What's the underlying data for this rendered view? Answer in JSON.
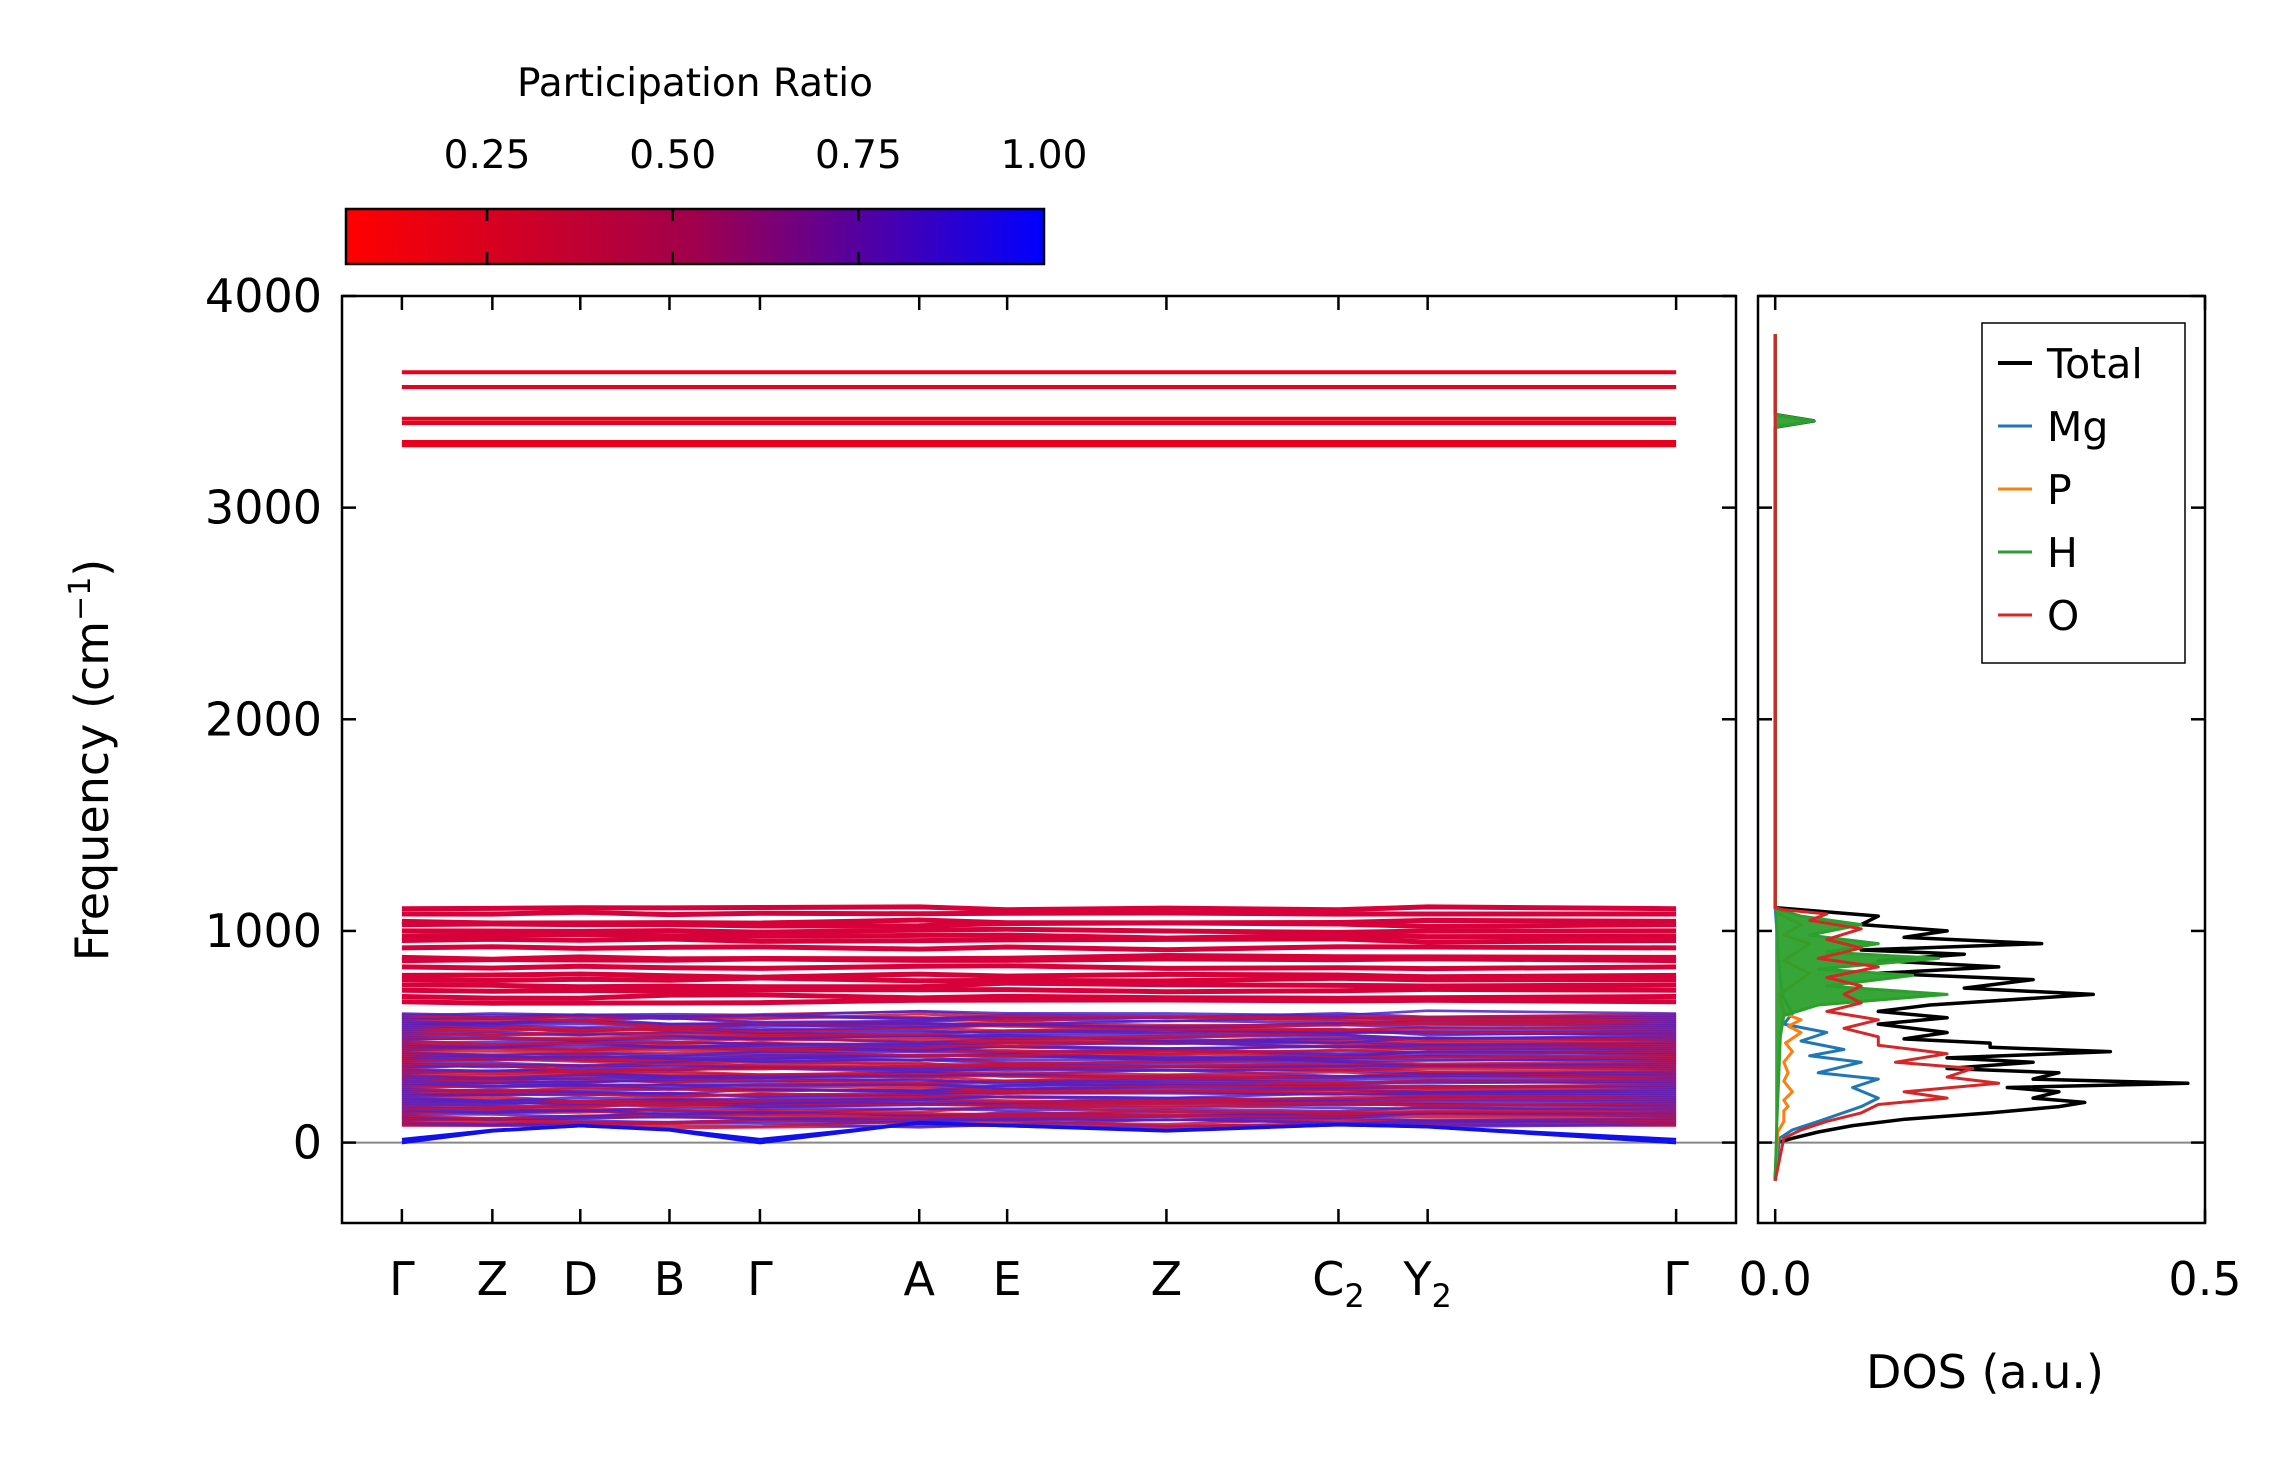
{
  "chart_data": [
    {
      "type": "line",
      "subtype": "phonon-band-structure",
      "ylabel": "Frequency (cm",
      "ylabel_sup": "−1",
      "ylabel_close": ")",
      "ylim": [
        -380,
        4000
      ],
      "yticks": [
        0,
        1000,
        2000,
        3000,
        4000
      ],
      "ytick_labels": [
        "0",
        "1000",
        "2000",
        "3000",
        "4000"
      ],
      "kpath": [
        {
          "label": "Γ",
          "sub": "",
          "pos": 0.0
        },
        {
          "label": "Z",
          "sub": "",
          "pos": 0.071
        },
        {
          "label": "D",
          "sub": "",
          "pos": 0.14
        },
        {
          "label": "B",
          "sub": "",
          "pos": 0.21
        },
        {
          "label": "Γ",
          "sub": "",
          "pos": 0.281
        },
        {
          "label": "A",
          "sub": "",
          "pos": 0.406
        },
        {
          "label": "E",
          "sub": "",
          "pos": 0.475
        },
        {
          "label": "Z",
          "sub": "",
          "pos": 0.6
        },
        {
          "label": "C",
          "sub": "2",
          "pos": 0.735
        },
        {
          "label": "Y",
          "sub": "2",
          "pos": 0.805
        },
        {
          "label": "Γ",
          "sub": "",
          "pos": 1.0
        }
      ],
      "xlim": [
        -0.047,
        1.047
      ],
      "zero_line": 0,
      "high_bands_cm1": [
        3640,
        3570,
        3420,
        3400,
        3310,
        3295
      ],
      "mid_bands_cm1": [
        1105,
        1080,
        1045,
        1030,
        1000,
        975,
        955,
        920,
        875,
        860,
        830,
        790,
        770,
        745,
        720,
        690,
        665
      ],
      "low_band_region_cm1": [
        80,
        610
      ],
      "acoustic_branch_points": [
        {
          "k": 0.0,
          "f": 0
        },
        {
          "k": 0.071,
          "f": 55
        },
        {
          "k": 0.14,
          "f": 80
        },
        {
          "k": 0.21,
          "f": 60
        },
        {
          "k": 0.281,
          "f": 0
        },
        {
          "k": 0.406,
          "f": 95
        },
        {
          "k": 0.475,
          "f": 80
        },
        {
          "k": 0.6,
          "f": 55
        },
        {
          "k": 0.735,
          "f": 85
        },
        {
          "k": 0.805,
          "f": 75
        },
        {
          "k": 1.0,
          "f": 0
        }
      ],
      "colorbar": {
        "title": "Participation Ratio",
        "range": [
          0.06,
          1.0
        ],
        "ticks": [
          0.25,
          0.5,
          0.75,
          1.0
        ],
        "tick_labels": [
          "0.25",
          "0.50",
          "0.75",
          "1.00"
        ],
        "color_low": "#ff0000",
        "color_mid": "#a0004c",
        "color_high": "#0000ff"
      },
      "band_colors": {
        "high": "#e8001c",
        "mid": "#d8003a",
        "low_a": "#c8123c",
        "low_b": "#5020c8",
        "acoustic": "#1010ee"
      }
    },
    {
      "type": "line",
      "subtype": "density-of-states",
      "xlabel": "DOS (a.u.)",
      "xlim": [
        -0.02,
        0.5
      ],
      "xticks": [
        0.0,
        0.5
      ],
      "xtick_labels": [
        "0.0",
        "0.5"
      ],
      "ylim": [
        -380,
        4000
      ],
      "series": [
        {
          "name": "Total",
          "color": "#000000",
          "points": [
            [
              0,
              -180
            ],
            [
              0.002,
              0
            ],
            [
              0.02,
              20
            ],
            [
              0.05,
              50
            ],
            [
              0.09,
              80
            ],
            [
              0.15,
              110
            ],
            [
              0.25,
              140
            ],
            [
              0.33,
              170
            ],
            [
              0.36,
              190
            ],
            [
              0.3,
              210
            ],
            [
              0.33,
              240
            ],
            [
              0.27,
              260
            ],
            [
              0.48,
              280
            ],
            [
              0.3,
              300
            ],
            [
              0.33,
              330
            ],
            [
              0.2,
              350
            ],
            [
              0.3,
              380
            ],
            [
              0.2,
              400
            ],
            [
              0.39,
              430
            ],
            [
              0.25,
              450
            ],
            [
              0.25,
              470
            ],
            [
              0.15,
              490
            ],
            [
              0.2,
              520
            ],
            [
              0.12,
              560
            ],
            [
              0.2,
              590
            ],
            [
              0.12,
              620
            ],
            [
              0.18,
              650
            ],
            [
              0.37,
              700
            ],
            [
              0.22,
              730
            ],
            [
              0.3,
              770
            ],
            [
              0.12,
              800
            ],
            [
              0.26,
              830
            ],
            [
              0.12,
              860
            ],
            [
              0.22,
              890
            ],
            [
              0.1,
              910
            ],
            [
              0.31,
              940
            ],
            [
              0.15,
              970
            ],
            [
              0.2,
              1000
            ],
            [
              0.1,
              1030
            ],
            [
              0.12,
              1070
            ],
            [
              0.03,
              1100
            ],
            [
              0,
              1110
            ],
            [
              0,
              3380
            ],
            [
              0.045,
              3410
            ],
            [
              0,
              3440
            ],
            [
              0,
              3820
            ]
          ]
        },
        {
          "name": "Mg",
          "color": "#1f77b4",
          "points": [
            [
              0,
              -180
            ],
            [
              0.005,
              20
            ],
            [
              0.02,
              60
            ],
            [
              0.05,
              100
            ],
            [
              0.1,
              170
            ],
            [
              0.12,
              210
            ],
            [
              0.09,
              260
            ],
            [
              0.12,
              300
            ],
            [
              0.05,
              330
            ],
            [
              0.1,
              380
            ],
            [
              0.04,
              410
            ],
            [
              0.08,
              440
            ],
            [
              0.03,
              480
            ],
            [
              0.06,
              520
            ],
            [
              0.01,
              560
            ],
            [
              0.02,
              610
            ],
            [
              0.008,
              700
            ],
            [
              0.004,
              850
            ],
            [
              0.002,
              1000
            ],
            [
              0,
              1110
            ],
            [
              0,
              3820
            ]
          ]
        },
        {
          "name": "P",
          "color": "#ff7f0e",
          "points": [
            [
              0,
              -180
            ],
            [
              0.003,
              50
            ],
            [
              0.01,
              100
            ],
            [
              0.01,
              150
            ],
            [
              0.015,
              170
            ],
            [
              0.01,
              200
            ],
            [
              0.02,
              240
            ],
            [
              0.01,
              290
            ],
            [
              0.015,
              330
            ],
            [
              0.01,
              380
            ],
            [
              0.02,
              430
            ],
            [
              0.012,
              470
            ],
            [
              0.03,
              520
            ],
            [
              0.015,
              550
            ],
            [
              0.03,
              580
            ],
            [
              0.01,
              610
            ],
            [
              0.005,
              700
            ],
            [
              0.04,
              800
            ],
            [
              0.01,
              860
            ],
            [
              0.04,
              940
            ],
            [
              0.01,
              980
            ],
            [
              0.03,
              1030
            ],
            [
              0.005,
              1080
            ],
            [
              0,
              1110
            ],
            [
              0,
              3820
            ]
          ]
        },
        {
          "name": "H",
          "color": "#2ca02c",
          "points": [
            [
              0,
              -180
            ],
            [
              0.002,
              100
            ],
            [
              0.004,
              300
            ],
            [
              0.006,
              500
            ],
            [
              0.01,
              600
            ],
            [
              0.05,
              650
            ],
            [
              0.2,
              700
            ],
            [
              0.06,
              740
            ],
            [
              0.16,
              790
            ],
            [
              0.05,
              820
            ],
            [
              0.19,
              870
            ],
            [
              0.06,
              900
            ],
            [
              0.12,
              940
            ],
            [
              0.04,
              980
            ],
            [
              0.1,
              1030
            ],
            [
              0.03,
              1070
            ],
            [
              0.005,
              1100
            ],
            [
              0,
              1110
            ],
            [
              0,
              3380
            ],
            [
              0.045,
              3410
            ],
            [
              0,
              3440
            ],
            [
              0,
              3820
            ]
          ]
        },
        {
          "name": "O",
          "color": "#d62728",
          "points": [
            [
              0,
              -180
            ],
            [
              0.01,
              20
            ],
            [
              0.03,
              60
            ],
            [
              0.06,
              100
            ],
            [
              0.1,
              140
            ],
            [
              0.12,
              180
            ],
            [
              0.2,
              210
            ],
            [
              0.15,
              240
            ],
            [
              0.26,
              280
            ],
            [
              0.2,
              310
            ],
            [
              0.23,
              350
            ],
            [
              0.14,
              380
            ],
            [
              0.2,
              420
            ],
            [
              0.12,
              460
            ],
            [
              0.12,
              500
            ],
            [
              0.08,
              540
            ],
            [
              0.12,
              580
            ],
            [
              0.06,
              620
            ],
            [
              0.1,
              660
            ],
            [
              0.08,
              700
            ],
            [
              0.1,
              740
            ],
            [
              0.06,
              780
            ],
            [
              0.12,
              830
            ],
            [
              0.05,
              870
            ],
            [
              0.1,
              920
            ],
            [
              0.06,
              960
            ],
            [
              0.1,
              1010
            ],
            [
              0.04,
              1050
            ],
            [
              0.06,
              1080
            ],
            [
              0.01,
              1100
            ],
            [
              0,
              1110
            ],
            [
              0,
              3820
            ]
          ]
        }
      ],
      "legend": {
        "position": "top-right",
        "entries": [
          "Total",
          "Mg",
          "P",
          "H",
          "O"
        ]
      }
    }
  ]
}
